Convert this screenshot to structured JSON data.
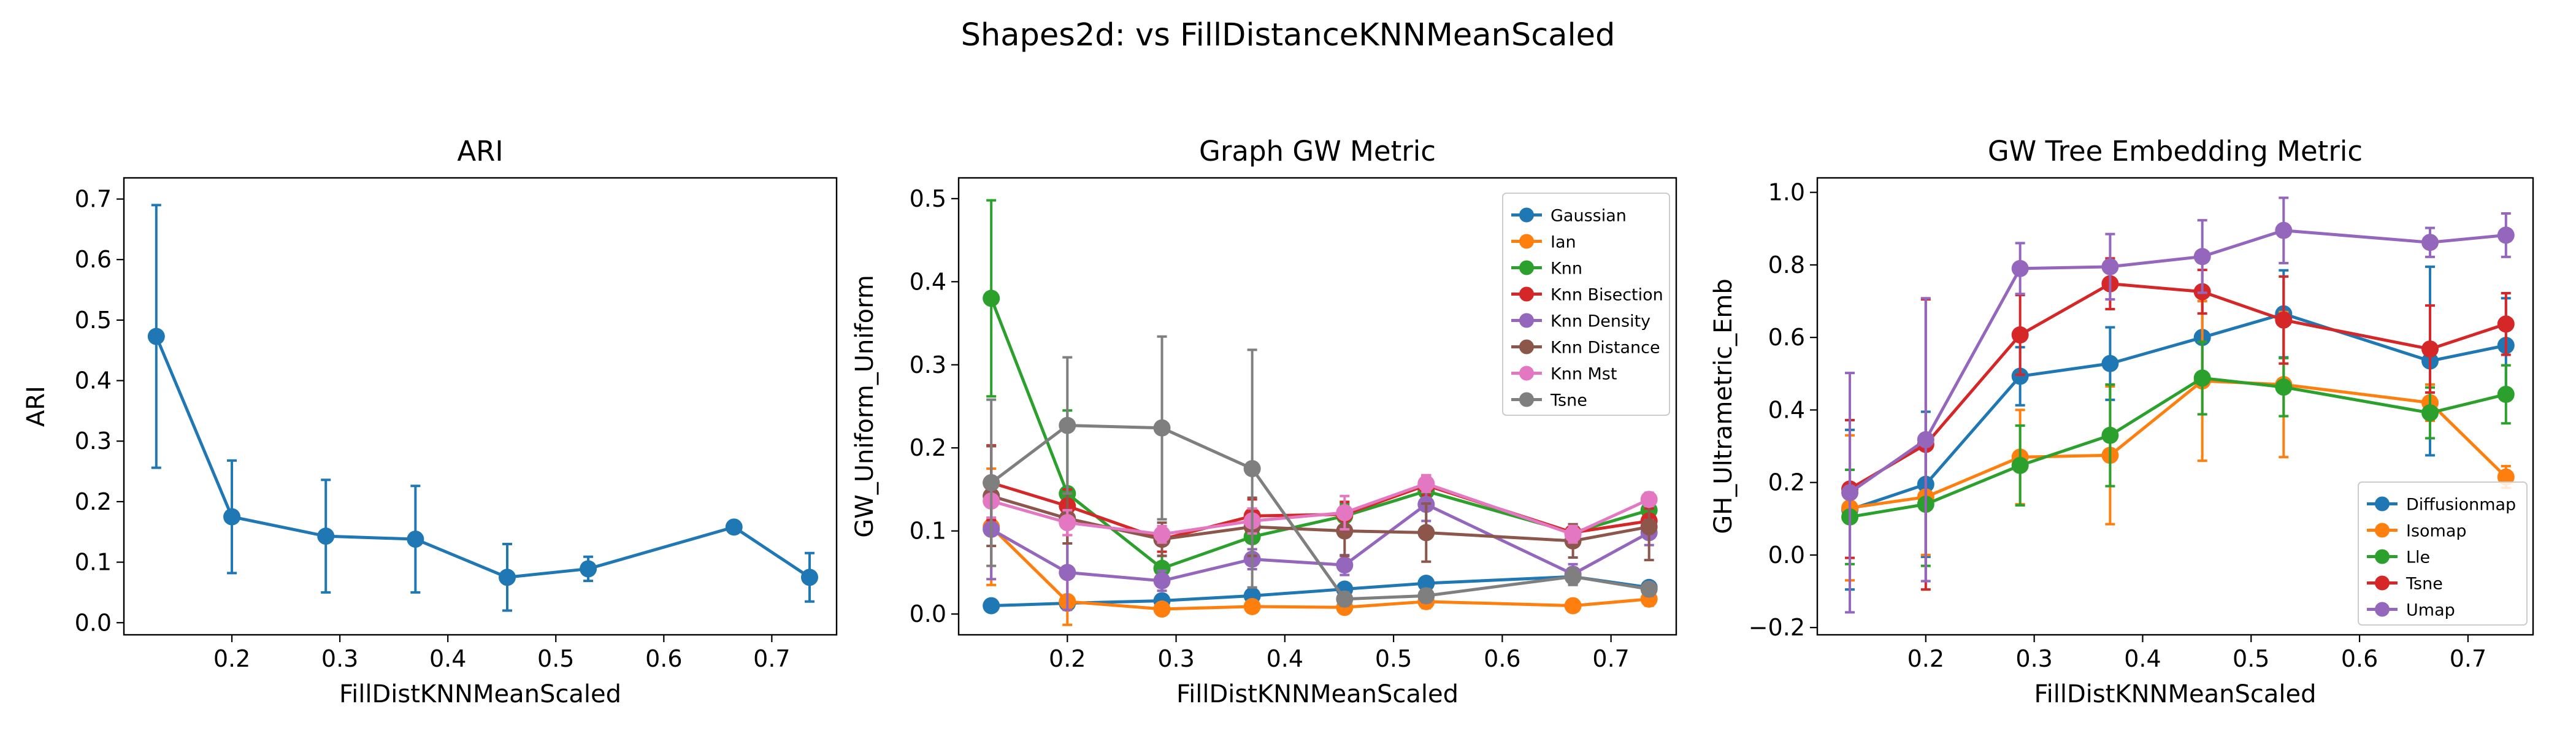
{
  "figure": {
    "suptitle": "Shapes2d: vs FillDistanceKNNMeanScaled",
    "colors": [
      "#1f77b4",
      "#ff7f0e",
      "#2ca02c",
      "#d62728",
      "#9467bd",
      "#8c564b",
      "#e377c2",
      "#7f7f7f"
    ]
  },
  "chart_data": [
    {
      "type": "line",
      "title": "ARI",
      "xlabel": "FillDistKNNMeanScaled",
      "ylabel": "ARI",
      "xlim": [
        0.1,
        0.76
      ],
      "ylim": [
        -0.02,
        0.735
      ],
      "xticks": [
        0.2,
        0.3,
        0.4,
        0.5,
        0.6,
        0.7
      ],
      "xticklabels": [
        "0.2",
        "0.3",
        "0.4",
        "0.5",
        "0.6",
        "0.7"
      ],
      "yticks": [
        0.0,
        0.1,
        0.2,
        0.3,
        0.4,
        0.5,
        0.6,
        0.7
      ],
      "yticklabels": [
        "0.0",
        "0.1",
        "0.2",
        "0.3",
        "0.4",
        "0.5",
        "0.6",
        "0.7"
      ],
      "legend": null,
      "x": [
        0.13,
        0.2,
        0.287,
        0.37,
        0.455,
        0.53,
        0.665,
        0.735
      ],
      "series": [
        {
          "name": "",
          "color": "#1f77b4",
          "values": [
            0.473,
            0.175,
            0.143,
            0.138,
            0.075,
            0.089,
            0.158,
            0.075
          ],
          "errors": [
            0.217,
            0.093,
            0.093,
            0.088,
            0.055,
            0.02,
            0.0,
            0.04
          ]
        }
      ]
    },
    {
      "type": "line",
      "title": "Graph GW Metric",
      "xlabel": "FillDistKNNMeanScaled",
      "ylabel": "GW_Uniform_Uniform",
      "xlim": [
        0.1,
        0.76
      ],
      "ylim": [
        -0.025,
        0.525
      ],
      "xticks": [
        0.2,
        0.3,
        0.4,
        0.5,
        0.6,
        0.7
      ],
      "xticklabels": [
        "0.2",
        "0.3",
        "0.4",
        "0.5",
        "0.6",
        "0.7"
      ],
      "yticks": [
        0.0,
        0.1,
        0.2,
        0.3,
        0.4,
        0.5
      ],
      "yticklabels": [
        "0.0",
        "0.1",
        "0.2",
        "0.3",
        "0.4",
        "0.5"
      ],
      "legend": "top-right",
      "x": [
        0.13,
        0.2,
        0.287,
        0.37,
        0.455,
        0.53,
        0.665,
        0.735
      ],
      "series": [
        {
          "name": "Gaussian",
          "color": "#1f77b4",
          "values": [
            0.01,
            0.013,
            0.016,
            0.022,
            0.03,
            0.037,
            0.045,
            0.032
          ],
          "errors": [
            0.003,
            0.004,
            0.004,
            0.005,
            0.006,
            0.007,
            0.008,
            0.006
          ]
        },
        {
          "name": "Ian",
          "color": "#ff7f0e",
          "values": [
            0.105,
            0.015,
            0.006,
            0.009,
            0.008,
            0.015,
            0.01,
            0.018
          ],
          "errors": [
            0.07,
            0.028,
            0.006,
            0.006,
            0.006,
            0.008,
            0.006,
            0.008
          ]
        },
        {
          "name": "Knn",
          "color": "#2ca02c",
          "values": [
            0.38,
            0.145,
            0.055,
            0.093,
            0.118,
            0.148,
            0.098,
            0.125
          ],
          "errors": [
            0.118,
            0.1,
            0.015,
            0.015,
            0.015,
            0.015,
            0.01,
            0.015
          ]
        },
        {
          "name": "Knn Bisection",
          "color": "#d62728",
          "values": [
            0.158,
            0.13,
            0.09,
            0.118,
            0.12,
            0.155,
            0.098,
            0.112
          ],
          "errors": [
            0.045,
            0.02,
            0.015,
            0.02,
            0.015,
            0.012,
            0.01,
            0.015
          ]
        },
        {
          "name": "Knn Density",
          "color": "#9467bd",
          "values": [
            0.102,
            0.05,
            0.04,
            0.066,
            0.059,
            0.132,
            0.048,
            0.098
          ],
          "errors": [
            0.06,
            0.045,
            0.012,
            0.012,
            0.012,
            0.02,
            0.012,
            0.015
          ]
        },
        {
          "name": "Knn Distance",
          "color": "#8c564b",
          "values": [
            0.142,
            0.115,
            0.09,
            0.105,
            0.1,
            0.098,
            0.088,
            0.105
          ],
          "errors": [
            0.06,
            0.03,
            0.02,
            0.035,
            0.03,
            0.035,
            0.02,
            0.04
          ]
        },
        {
          "name": "Knn Mst",
          "color": "#e377c2",
          "values": [
            0.136,
            0.11,
            0.096,
            0.112,
            0.122,
            0.157,
            0.096,
            0.138
          ],
          "errors": [
            0.02,
            0.015,
            0.01,
            0.015,
            0.02,
            0.01,
            0.01,
            0.008
          ]
        },
        {
          "name": "Tsne",
          "color": "#7f7f7f",
          "values": [
            0.158,
            0.227,
            0.224,
            0.175,
            0.018,
            0.022,
            0.045,
            0.03
          ],
          "errors": [
            0.1,
            0.082,
            0.11,
            0.143,
            0.008,
            0.008,
            0.01,
            0.008
          ]
        }
      ]
    },
    {
      "type": "line",
      "title": "GW Tree Embedding Metric",
      "xlabel": "FillDistKNNMeanScaled",
      "ylabel": "GH_Ultrametric_Emb",
      "xlim": [
        0.1,
        0.76
      ],
      "ylim": [
        -0.22,
        1.04
      ],
      "xticks": [
        0.2,
        0.3,
        0.4,
        0.5,
        0.6,
        0.7
      ],
      "xticklabels": [
        "0.2",
        "0.3",
        "0.4",
        "0.5",
        "0.6",
        "0.7"
      ],
      "yticks": [
        -0.2,
        0.0,
        0.2,
        0.4,
        0.6,
        0.8,
        1.0
      ],
      "yticklabels": [
        "−0.2",
        "0.0",
        "0.2",
        "0.4",
        "0.6",
        "0.8",
        "1.0"
      ],
      "legend": "bottom-right",
      "x": [
        0.13,
        0.2,
        0.287,
        0.37,
        0.455,
        0.53,
        0.665,
        0.735
      ],
      "series": [
        {
          "name": "Diffusionmap",
          "color": "#1f77b4",
          "values": [
            0.125,
            0.195,
            0.493,
            0.528,
            0.6,
            0.665,
            0.535,
            0.578
          ],
          "errors": [
            0.22,
            0.2,
            0.08,
            0.1,
            0.12,
            0.12,
            0.26,
            0.13
          ]
        },
        {
          "name": "Isomap",
          "color": "#ff7f0e",
          "values": [
            0.13,
            0.16,
            0.27,
            0.275,
            0.48,
            0.47,
            0.42,
            0.215
          ],
          "errors": [
            0.2,
            0.16,
            0.13,
            0.19,
            0.22,
            0.2,
            0.05,
            0.03
          ]
        },
        {
          "name": "Lle",
          "color": "#2ca02c",
          "values": [
            0.105,
            0.14,
            0.247,
            0.33,
            0.488,
            0.463,
            0.392,
            0.443
          ],
          "errors": [
            0.13,
            0.17,
            0.11,
            0.14,
            0.1,
            0.08,
            0.07,
            0.08
          ]
        },
        {
          "name": "Tsne",
          "color": "#d62728",
          "values": [
            0.182,
            0.305,
            0.607,
            0.748,
            0.726,
            0.648,
            0.568,
            0.637
          ],
          "errors": [
            0.19,
            0.4,
            0.11,
            0.07,
            0.06,
            0.12,
            0.12,
            0.085
          ]
        },
        {
          "name": "Umap",
          "color": "#9467bd",
          "values": [
            0.172,
            0.318,
            0.79,
            0.795,
            0.823,
            0.895,
            0.862,
            0.882
          ],
          "errors": [
            0.33,
            0.39,
            0.07,
            0.09,
            0.1,
            0.09,
            0.04,
            0.06
          ]
        }
      ]
    }
  ]
}
